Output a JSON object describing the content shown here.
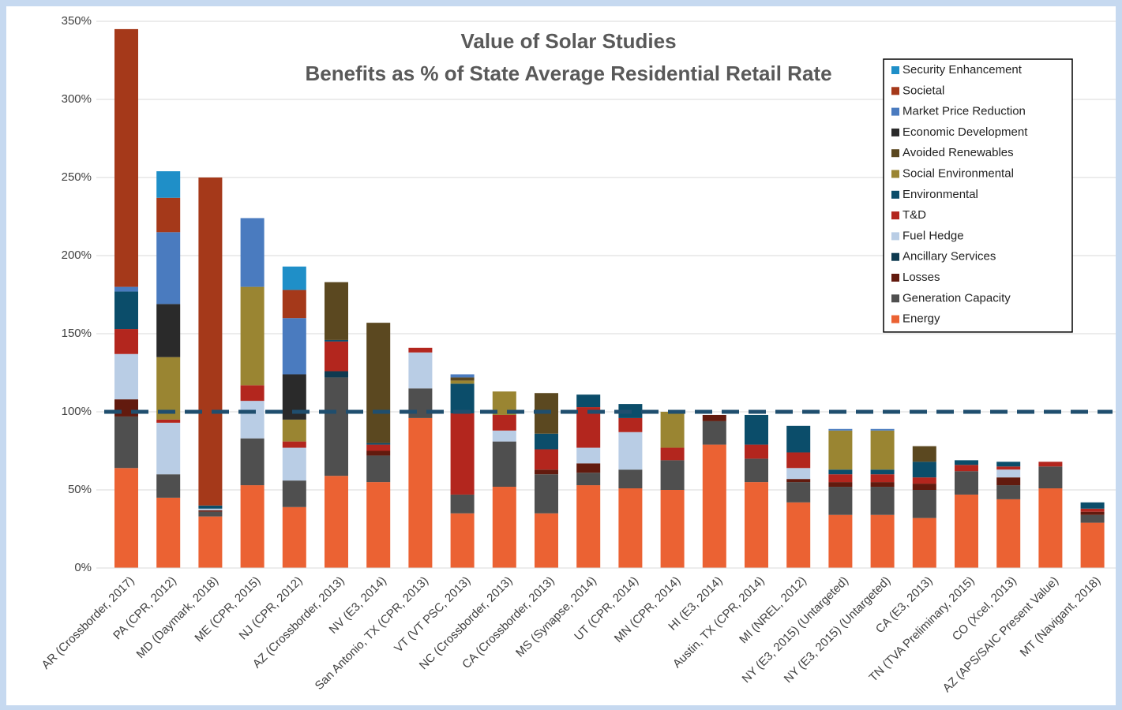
{
  "chart_data": {
    "type": "stacked_bar",
    "title": "Value of Solar Studies",
    "subtitle": "Benefits as % of State Average Residential Retail Rate",
    "categories": [
      "AR (Crossborder, 2017)",
      "PA (CPR, 2012)",
      "MD (Daymark, 2018)",
      "ME (CPR, 2015)",
      "NJ (CPR, 2012)",
      "AZ (Crossborder, 2013)",
      "NV (E3, 2014)",
      "San Antonio, TX (CPR, 2013)",
      "VT (VT PSC, 2013)",
      "NC (Crossborder, 2013)",
      "CA (Crossborder, 2013)",
      "MS (Synapse, 2014)",
      "UT (CPR, 2014)",
      "MN (CPR, 2014)",
      "HI (E3, 2014)",
      "Austin, TX (CPR, 2014)",
      "MI (NREL, 2012)",
      "NY (E3, 2015) (Untargeted)",
      "NY (E3, 2015) (Untargeted)",
      "CA (E3, 2013)",
      "TN (TVA Preliminary, 2015)",
      "CO (Xcel, 2013)",
      "AZ (APS/SAIC Present Value)",
      "MT (Navigant, 2018)"
    ],
    "series": [
      {
        "name": "Energy",
        "color": "#eb6233",
        "values": [
          64,
          45,
          33,
          53,
          39,
          59,
          55,
          96,
          35,
          52,
          35,
          53,
          51,
          50,
          79,
          55,
          42,
          34,
          34,
          32,
          47,
          44,
          51,
          29
        ]
      },
      {
        "name": "Generation Capacity",
        "color": "#4f4f4f",
        "values": [
          33,
          15,
          3,
          30,
          17,
          63,
          17,
          19,
          12,
          29,
          25,
          8,
          12,
          19,
          15,
          15,
          13,
          18,
          18,
          18,
          15,
          9,
          14,
          5
        ]
      },
      {
        "name": "Losses",
        "color": "#621a0e",
        "values": [
          11,
          0,
          1,
          0,
          0,
          0,
          3,
          0,
          0,
          0,
          3,
          6,
          0,
          0,
          4,
          0,
          2,
          3,
          3,
          4,
          0,
          5,
          0,
          2
        ]
      },
      {
        "name": "Ancillary Services",
        "color": "#0e3a50",
        "values": [
          0,
          0,
          0,
          0,
          0,
          4,
          0,
          0,
          0,
          0,
          0,
          0,
          0,
          0,
          0,
          0,
          0,
          0,
          0,
          0,
          0,
          0,
          0,
          0
        ]
      },
      {
        "name": "Fuel Hedge",
        "color": "#b9cde5",
        "values": [
          29,
          33,
          1,
          24,
          21,
          0,
          0,
          23,
          0,
          7,
          0,
          10,
          24,
          0,
          0,
          0,
          7,
          0,
          0,
          0,
          0,
          5,
          0,
          0
        ]
      },
      {
        "name": "T&D",
        "color": "#b3261e",
        "values": [
          16,
          2,
          0,
          10,
          4,
          19,
          4,
          3,
          52,
          10,
          13,
          26,
          9,
          8,
          0,
          9,
          10,
          5,
          5,
          4,
          4,
          2,
          3,
          2
        ]
      },
      {
        "name": "Environmental",
        "color": "#0b4d6a",
        "values": [
          24,
          0,
          2,
          0,
          0,
          1,
          1,
          0,
          19,
          0,
          10,
          8,
          9,
          0,
          0,
          19,
          17,
          3,
          3,
          10,
          3,
          3,
          0,
          4
        ]
      },
      {
        "name": "Social Environmental",
        "color": "#9a8532",
        "values": [
          0,
          40,
          0,
          63,
          14,
          0,
          0,
          0,
          2,
          15,
          0,
          0,
          0,
          23,
          0,
          0,
          0,
          25,
          25,
          0,
          0,
          0,
          0,
          0
        ]
      },
      {
        "name": "Avoided Renewables",
        "color": "#5b4820",
        "values": [
          0,
          0,
          0,
          0,
          0,
          37,
          77,
          0,
          2,
          0,
          26,
          0,
          0,
          0,
          0,
          0,
          0,
          0,
          0,
          10,
          0,
          0,
          0,
          0
        ]
      },
      {
        "name": "Economic Development",
        "color": "#2a2a2a",
        "values": [
          0,
          34,
          0,
          0,
          29,
          0,
          0,
          0,
          0,
          0,
          0,
          0,
          0,
          0,
          0,
          0,
          0,
          0,
          0,
          0,
          0,
          0,
          0,
          0
        ]
      },
      {
        "name": "Market Price Reduction",
        "color": "#4a7bbf",
        "values": [
          3,
          46,
          0,
          44,
          36,
          0,
          0,
          0,
          2,
          0,
          0,
          0,
          0,
          0,
          0,
          0,
          0,
          1,
          1,
          0,
          0,
          0,
          0,
          0
        ]
      },
      {
        "name": "Societal",
        "color": "#a5391a",
        "values": [
          165,
          22,
          210,
          0,
          18,
          0,
          0,
          0,
          0,
          0,
          0,
          0,
          0,
          0,
          0,
          0,
          0,
          0,
          0,
          0,
          0,
          0,
          0,
          0
        ]
      },
      {
        "name": "Security Enhancement",
        "color": "#1f8fc8",
        "values": [
          0,
          17,
          0,
          0,
          15,
          0,
          0,
          0,
          0,
          0,
          0,
          0,
          0,
          0,
          0,
          0,
          0,
          0,
          0,
          0,
          0,
          0,
          0,
          0
        ]
      }
    ],
    "ylim": [
      0,
      350
    ],
    "yticks": [
      {
        "value": 0,
        "label": "0%"
      },
      {
        "value": 50,
        "label": "50%"
      },
      {
        "value": 100,
        "label": "100%"
      },
      {
        "value": 150,
        "label": "150%"
      },
      {
        "value": 200,
        "label": "200%"
      },
      {
        "value": 250,
        "label": "250%"
      },
      {
        "value": 300,
        "label": "300%"
      },
      {
        "value": 350,
        "label": "350%"
      }
    ],
    "reference_line": 100,
    "grid": true,
    "legend": "top-right"
  }
}
